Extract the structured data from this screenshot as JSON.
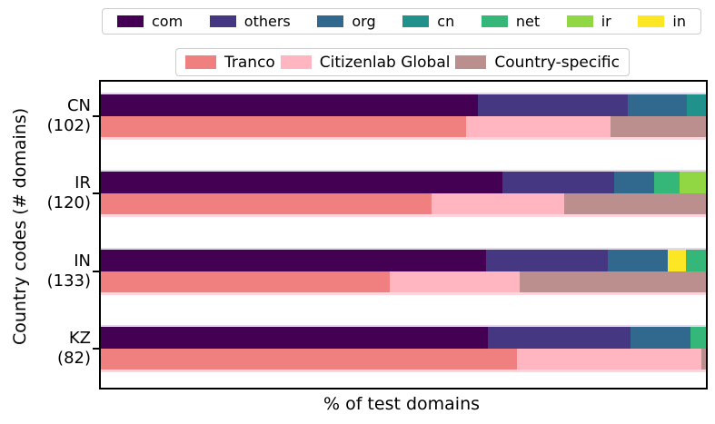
{
  "colors": {
    "com": "#440154",
    "others": "#453781",
    "org": "#31688e",
    "cn": "#21918c",
    "net": "#35b779",
    "ir": "#90d743",
    "in": "#fde725",
    "tranco": "#f08080",
    "citizenlab_global": "#ffb6c1",
    "country_specific": "#bc8f8f"
  },
  "chart_data": {
    "type": "bar",
    "orientation": "horizontal",
    "stacked": true,
    "unit": "percent of test domains",
    "xlabel": "% of test domains",
    "ylabel": "Country codes (# domains)",
    "xlim": [
      0,
      100
    ],
    "grid": false,
    "legend_tld": [
      {
        "key": "com",
        "label": "com"
      },
      {
        "key": "others",
        "label": "others"
      },
      {
        "key": "org",
        "label": "org"
      },
      {
        "key": "cn",
        "label": "cn"
      },
      {
        "key": "net",
        "label": "net"
      },
      {
        "key": "ir",
        "label": "ir"
      },
      {
        "key": "in",
        "label": "in"
      }
    ],
    "legend_source": [
      {
        "key": "tranco",
        "label": "Tranco"
      },
      {
        "key": "citizenlab_global",
        "label": "Citizenlab Global"
      },
      {
        "key": "country_specific",
        "label": "Country-specific"
      }
    ],
    "groups": [
      {
        "code": "CN",
        "count_label": "(102)",
        "num_domains": 102,
        "tld_segments": [
          {
            "key": "com",
            "value": 62.3
          },
          {
            "key": "others",
            "value": 24.8
          },
          {
            "key": "org",
            "value": 9.8
          },
          {
            "key": "cn",
            "value": 3.1
          }
        ],
        "source_segments": [
          {
            "key": "tranco",
            "value": 60.4
          },
          {
            "key": "citizenlab_global",
            "value": 23.9
          },
          {
            "key": "country_specific",
            "value": 15.7
          }
        ]
      },
      {
        "code": "IR",
        "count_label": "(120)",
        "num_domains": 120,
        "tld_segments": [
          {
            "key": "com",
            "value": 66.4
          },
          {
            "key": "others",
            "value": 18.5
          },
          {
            "key": "org",
            "value": 6.5
          },
          {
            "key": "net",
            "value": 4.3
          },
          {
            "key": "ir",
            "value": 4.3
          }
        ],
        "source_segments": [
          {
            "key": "tranco",
            "value": 54.7
          },
          {
            "key": "citizenlab_global",
            "value": 21.9
          },
          {
            "key": "country_specific",
            "value": 23.4
          }
        ]
      },
      {
        "code": "IN",
        "count_label": "(133)",
        "num_domains": 133,
        "tld_segments": [
          {
            "key": "com",
            "value": 63.7
          },
          {
            "key": "others",
            "value": 20.1
          },
          {
            "key": "org",
            "value": 9.9
          },
          {
            "key": "in",
            "value": 3.0
          },
          {
            "key": "net",
            "value": 3.3
          }
        ],
        "source_segments": [
          {
            "key": "tranco",
            "value": 47.7
          },
          {
            "key": "citizenlab_global",
            "value": 21.5
          },
          {
            "key": "country_specific",
            "value": 30.8
          }
        ]
      },
      {
        "code": "KZ",
        "count_label": "(82)",
        "num_domains": 82,
        "tld_segments": [
          {
            "key": "com",
            "value": 64.0
          },
          {
            "key": "others",
            "value": 23.6
          },
          {
            "key": "org",
            "value": 9.9
          },
          {
            "key": "net",
            "value": 2.5
          }
        ],
        "source_segments": [
          {
            "key": "tranco",
            "value": 68.8
          },
          {
            "key": "citizenlab_global",
            "value": 30.4
          },
          {
            "key": "country_specific",
            "value": 0.8
          }
        ]
      }
    ]
  }
}
